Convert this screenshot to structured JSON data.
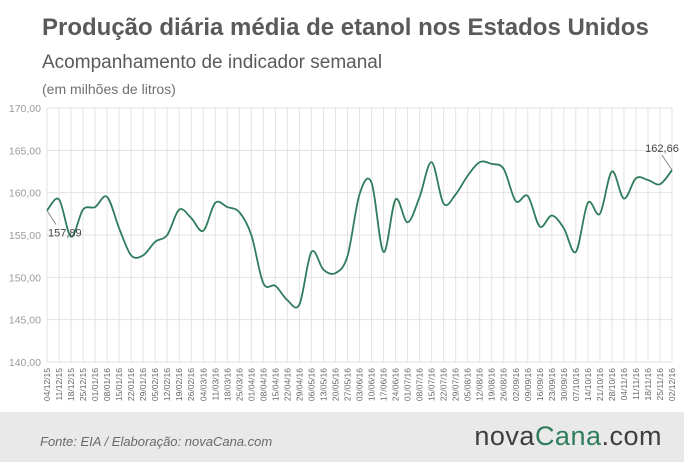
{
  "header": {
    "title": "Produção diária média de etanol nos Estados Unidos",
    "subtitle": "Acompanhamento de indicador semanal",
    "unit": "(em milhões de litros)"
  },
  "footer": {
    "source": "Fonte:  EIA / Elaboração:  novaCana.com",
    "logo_part1": "nova",
    "logo_part2": "Cana",
    "logo_part3": ".com"
  },
  "colors": {
    "line": "#2f7d5c",
    "grid": "#e3e3e3",
    "text": "#5a5a5a",
    "footer_bg": "#e9e9e9"
  },
  "chart_data": {
    "type": "line",
    "title": "Produção diária média de etanol nos Estados Unidos",
    "subtitle": "Acompanhamento de indicador semanal",
    "ylabel": "(em milhões de litros)",
    "ylim": [
      140,
      170
    ],
    "yticks": [
      "140,00",
      "145,00",
      "150,00",
      "155,00",
      "160,00",
      "165,00",
      "170,00"
    ],
    "grid": true,
    "x_labels": [
      "04/12/15",
      "11/12/15",
      "18/12/15",
      "25/12/15",
      "01/01/16",
      "08/01/16",
      "15/01/16",
      "22/01/16",
      "29/01/16",
      "05/02/16",
      "12/02/16",
      "19/02/16",
      "26/02/16",
      "04/03/16",
      "11/03/16",
      "18/03/16",
      "25/03/16",
      "01/04/16",
      "08/04/16",
      "15/04/16",
      "22/04/16",
      "29/04/16",
      "06/05/16",
      "13/05/16",
      "20/05/16",
      "27/05/16",
      "03/06/16",
      "10/06/16",
      "17/06/16",
      "24/06/16",
      "01/07/16",
      "08/07/16",
      "15/07/16",
      "22/07/16",
      "29/07/16",
      "05/08/16",
      "12/08/16",
      "19/08/16",
      "26/08/16",
      "02/09/16",
      "09/09/16",
      "16/09/16",
      "23/09/16",
      "30/09/16",
      "07/10/16",
      "14/10/16",
      "21/10/16",
      "28/10/16",
      "04/11/16",
      "11/11/16",
      "18/11/16",
      "25/11/16",
      "02/12/16"
    ],
    "values": [
      157.89,
      159.2,
      154.8,
      158.0,
      158.3,
      159.5,
      155.8,
      152.6,
      152.6,
      154.2,
      155.0,
      158.0,
      157.0,
      155.5,
      158.8,
      158.3,
      157.7,
      155.0,
      149.3,
      149.0,
      147.3,
      146.8,
      153.0,
      150.9,
      150.5,
      152.5,
      159.8,
      161.2,
      153.0,
      159.2,
      156.5,
      159.5,
      163.6,
      158.7,
      159.8,
      162.0,
      163.6,
      163.4,
      162.8,
      159.0,
      159.6,
      156.0,
      157.3,
      155.8,
      153.0,
      158.8,
      157.5,
      162.5,
      159.3,
      161.7,
      161.5,
      161.0,
      162.66
    ],
    "annotations": [
      {
        "index": 0,
        "label": "157,89"
      },
      {
        "index": 52,
        "label": "162,66"
      }
    ]
  }
}
